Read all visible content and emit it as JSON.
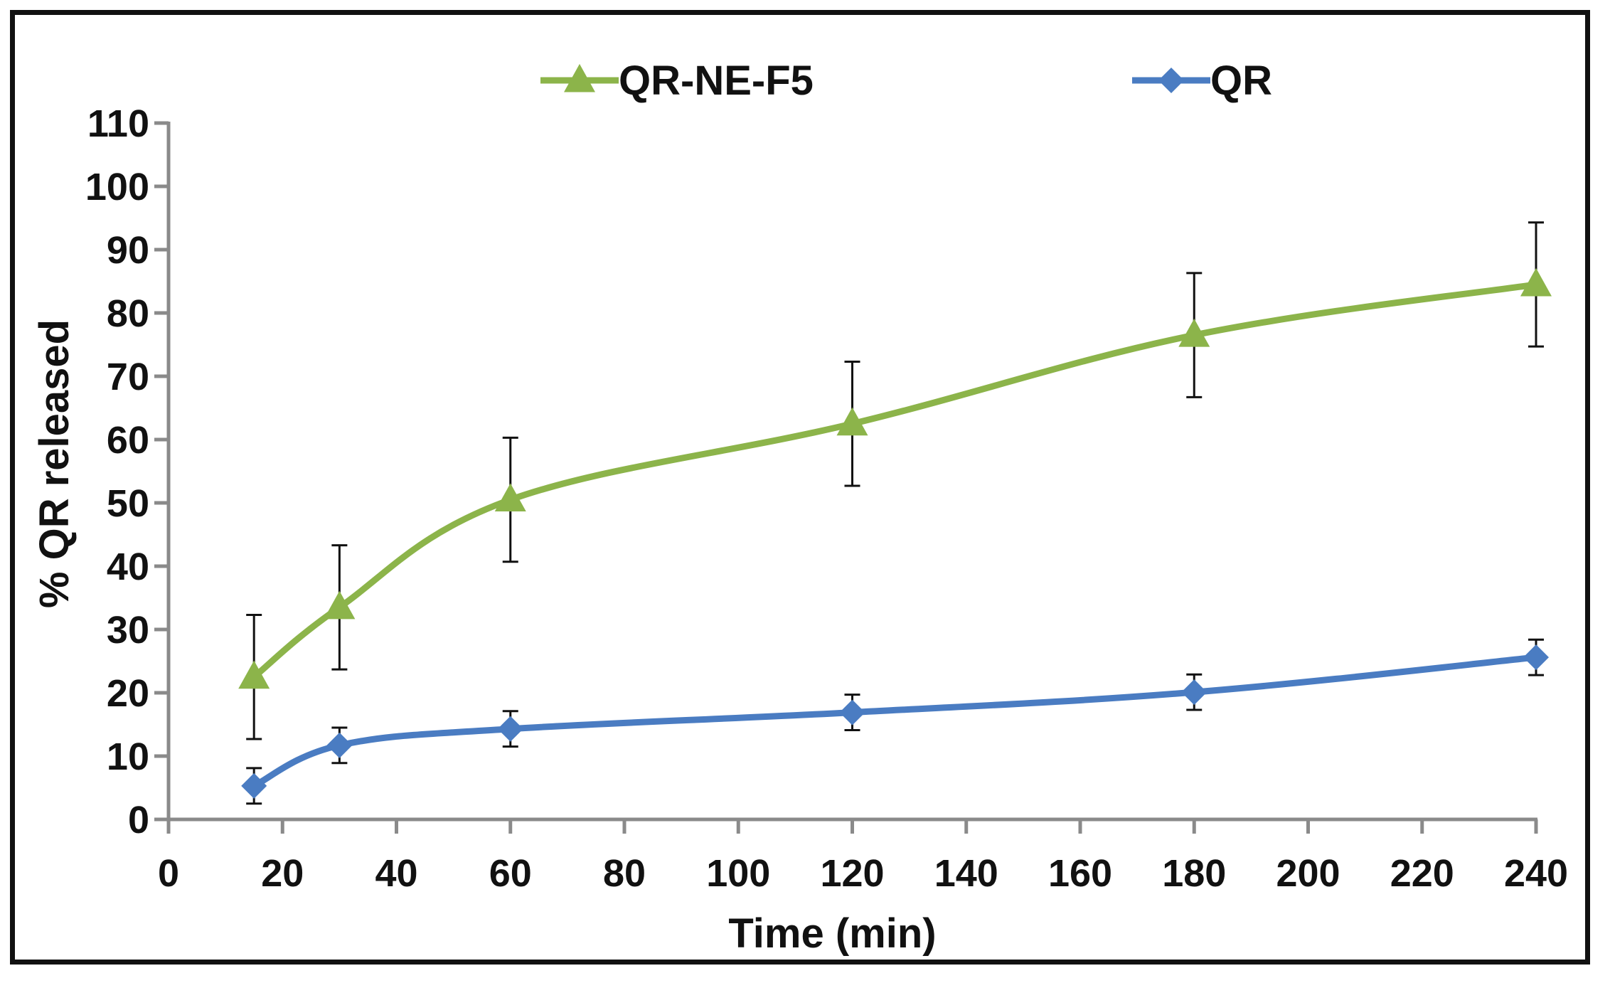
{
  "chart_data": {
    "type": "line",
    "title": "",
    "xlabel": "Time (min)",
    "ylabel": "% QR released",
    "xlim": [
      0,
      240
    ],
    "ylim": [
      0,
      110
    ],
    "xticks": [
      0,
      20,
      40,
      60,
      80,
      100,
      120,
      140,
      160,
      180,
      200,
      220,
      240
    ],
    "yticks": [
      0,
      10,
      20,
      30,
      40,
      50,
      60,
      70,
      80,
      90,
      100,
      110
    ],
    "grid": false,
    "legend_position": "top",
    "x": [
      15,
      30,
      60,
      120,
      180,
      240
    ],
    "series": [
      {
        "name": "QR-NE-F5",
        "marker": "triangle",
        "color": "#8cb44a",
        "values": [
          22.5,
          33.5,
          50.5,
          62.5,
          76.5,
          84.5
        ],
        "errors": [
          9.8,
          9.8,
          9.8,
          9.8,
          9.8,
          9.8
        ]
      },
      {
        "name": "QR",
        "marker": "diamond",
        "color": "#4a7cc2",
        "values": [
          5.3,
          11.7,
          14.3,
          16.9,
          20.1,
          25.6
        ],
        "errors": [
          2.8,
          2.8,
          2.8,
          2.8,
          2.8,
          2.8
        ]
      }
    ]
  }
}
